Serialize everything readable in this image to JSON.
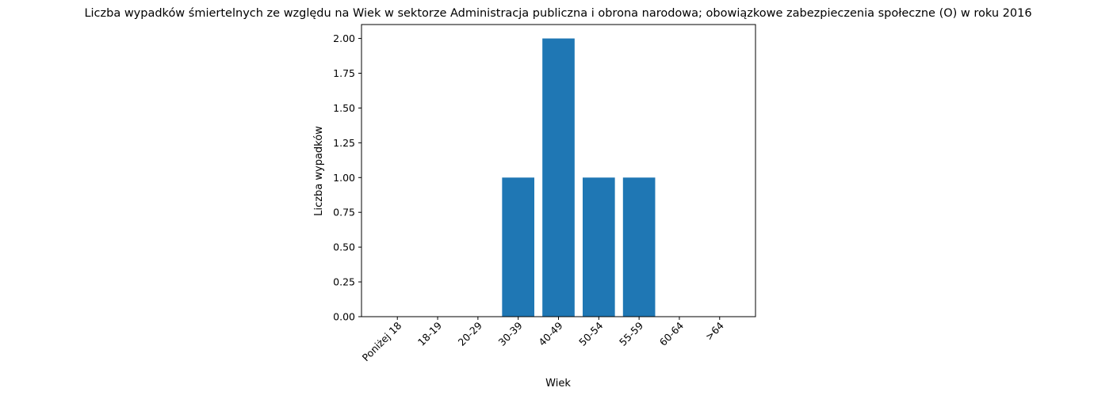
{
  "chart_data": {
    "type": "bar",
    "title": "Liczba wypadków śmiertelnych ze względu na Wiek w sektorze Administracja publiczna i obrona narodowa; obowiązkowe zabezpieczenia społeczne  (O)  w roku 2016",
    "xlabel": "Wiek",
    "ylabel": "Liczba wypadków",
    "categories": [
      "Poniżej 18",
      "18-19",
      "20-29",
      "30-39",
      "40-49",
      "50-54",
      "55-59",
      "60-64",
      ">64"
    ],
    "values": [
      0,
      0,
      0,
      1,
      2,
      1,
      1,
      0,
      0
    ],
    "ylim": [
      0,
      2.1
    ],
    "yticks": [
      "0.00",
      "0.25",
      "0.50",
      "0.75",
      "1.00",
      "1.25",
      "1.50",
      "1.75",
      "2.00"
    ],
    "grid": false,
    "bar_color": "#1f77b4"
  }
}
